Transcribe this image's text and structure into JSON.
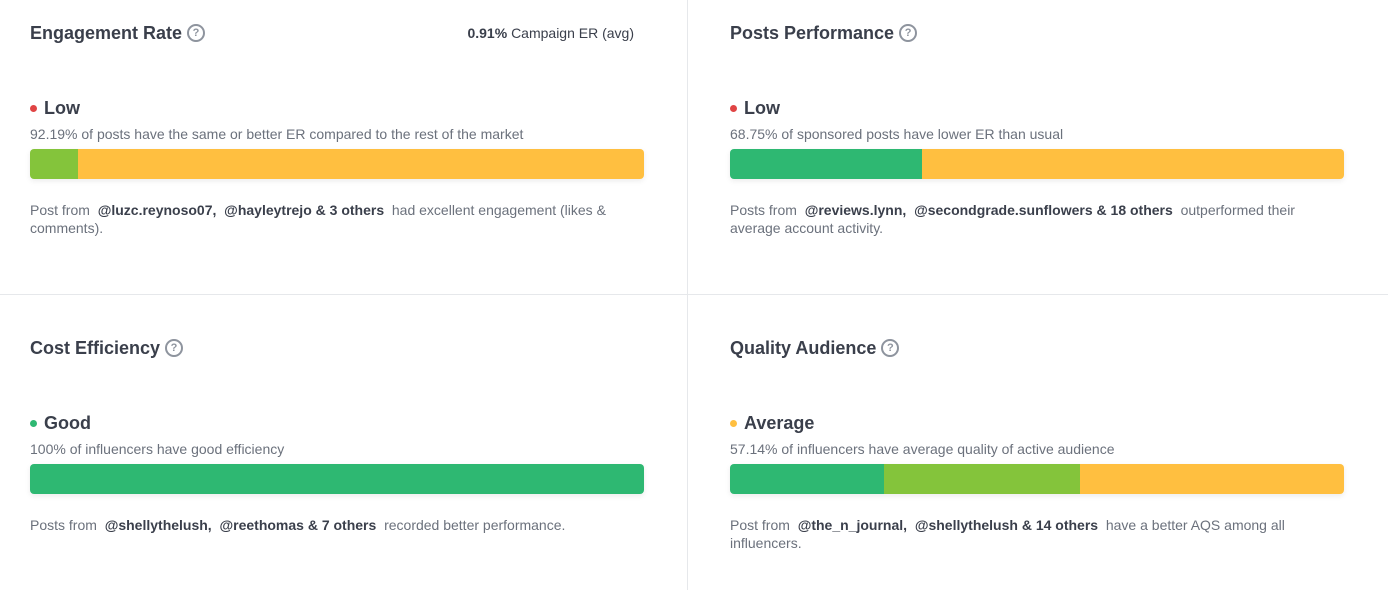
{
  "cards": [
    {
      "title": "Engagement Rate",
      "help_icon": "question-circle-icon",
      "campaign_value": "0.91%",
      "campaign_label": "Campaign ER (avg)",
      "status": "Low",
      "status_color": "#e04444",
      "description": "92.19% of posts have the same or better ER compared to the rest of the market",
      "bar": [
        {
          "fraction": 0.078,
          "color": "#84c43b"
        },
        {
          "fraction": 0.922,
          "color": "#ffbf40"
        }
      ],
      "footer": {
        "prefix": "Post from",
        "mention1": "@luzc.reynoso07,",
        "mention2": "@hayleytrejo & 3 others",
        "suffix": "had excellent engagement (likes & comments)."
      }
    },
    {
      "title": "Posts Performance",
      "help_icon": "question-circle-icon",
      "status": "Low",
      "status_color": "#e04444",
      "description": "68.75% of sponsored posts have lower ER than usual",
      "bar": [
        {
          "fraction": 0.3125,
          "color": "#2eb872"
        },
        {
          "fraction": 0.6875,
          "color": "#ffbf40"
        }
      ],
      "footer": {
        "prefix": "Posts from",
        "mention1": "@reviews.lynn,",
        "mention2": "@secondgrade.sunflowers & 18 others",
        "suffix": "outperformed their average account activity."
      }
    },
    {
      "title": "Cost Efficiency",
      "help_icon": "question-circle-icon",
      "status": "Good",
      "status_color": "#2eb872",
      "description": "100% of influencers have good efficiency",
      "bar": [
        {
          "fraction": 1.0,
          "color": "#2eb872"
        }
      ],
      "footer": {
        "prefix": "Posts from",
        "mention1": "@shellythelush,",
        "mention2": "@reethomas & 7 others",
        "suffix": "recorded better performance."
      }
    },
    {
      "title": "Quality Audience",
      "help_icon": "question-circle-icon",
      "status": "Average",
      "status_color": "#ffbf40",
      "description": "57.14% of influencers have average quality of active audience",
      "bar": [
        {
          "fraction": 0.25,
          "color": "#2eb872"
        },
        {
          "fraction": 0.32,
          "color": "#84c43b"
        },
        {
          "fraction": 0.43,
          "color": "#ffbf40"
        }
      ],
      "footer": {
        "prefix": "Post from",
        "mention1": "@the_n_journal,",
        "mention2": "@shellythelush & 14 others",
        "suffix": "have a better AQS among all influencers."
      }
    }
  ]
}
